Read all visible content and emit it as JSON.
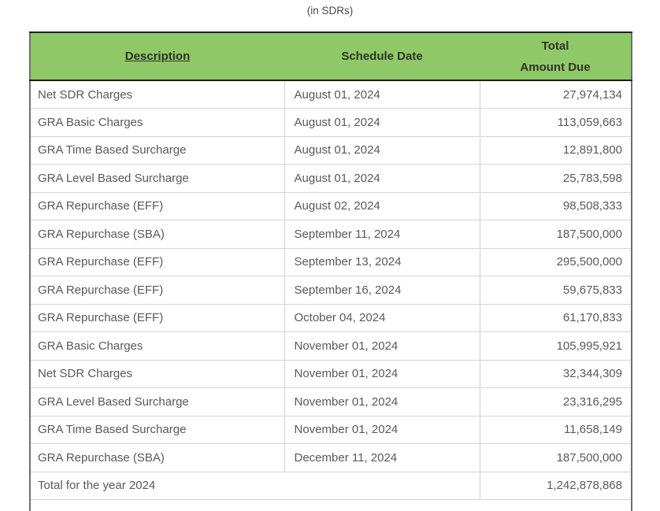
{
  "page": {
    "caption": "(in SDRs)"
  },
  "table": {
    "headers": {
      "description": "Description",
      "schedule_date": "Schedule Date",
      "amount_line1": "Total",
      "amount_line2": "Amount Due"
    },
    "rows": [
      {
        "description": "Net SDR Charges",
        "schedule_date": "August 01, 2024",
        "amount": "27,974,134"
      },
      {
        "description": "GRA Basic Charges",
        "schedule_date": "August 01, 2024",
        "amount": "113,059,663"
      },
      {
        "description": "GRA Time Based Surcharge",
        "schedule_date": "August 01, 2024",
        "amount": "12,891,800"
      },
      {
        "description": "GRA Level Based Surcharge",
        "schedule_date": "August 01, 2024",
        "amount": "25,783,598"
      },
      {
        "description": "GRA Repurchase (EFF)",
        "schedule_date": "August 02, 2024",
        "amount": "98,508,333"
      },
      {
        "description": "GRA Repurchase (SBA)",
        "schedule_date": "September 11, 2024",
        "amount": "187,500,000"
      },
      {
        "description": "GRA Repurchase (EFF)",
        "schedule_date": "September 13, 2024",
        "amount": "295,500,000"
      },
      {
        "description": "GRA Repurchase (EFF)",
        "schedule_date": "September 16, 2024",
        "amount": "59,675,833"
      },
      {
        "description": "GRA Repurchase (EFF)",
        "schedule_date": "October 04, 2024",
        "amount": "61,170,833"
      },
      {
        "description": "GRA Basic Charges",
        "schedule_date": "November 01, 2024",
        "amount": "105,995,921"
      },
      {
        "description": "Net SDR Charges",
        "schedule_date": "November 01, 2024",
        "amount": "32,344,309"
      },
      {
        "description": "GRA Level Based Surcharge",
        "schedule_date": "November 01, 2024",
        "amount": "23,316,295"
      },
      {
        "description": "GRA Time Based Surcharge",
        "schedule_date": "November 01, 2024",
        "amount": "11,658,149"
      },
      {
        "description": "GRA Repurchase (SBA)",
        "schedule_date": "December 11, 2024",
        "amount": "187,500,000"
      }
    ],
    "total_row": {
      "label": "Total for the year 2024",
      "amount": "1,242,878,868"
    },
    "colors": {
      "header_bg": "#8fc866",
      "header_text": "#33332b",
      "body_text": "#595959"
    }
  }
}
